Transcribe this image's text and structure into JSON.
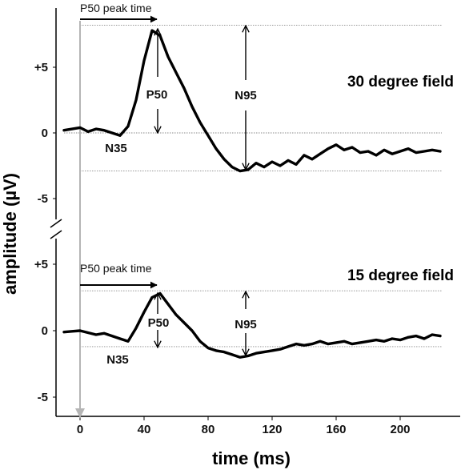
{
  "chart_data": {
    "type": "line",
    "xlabel": "time (ms)",
    "ylabel": "amplitude (µV)",
    "xlim": [
      -10,
      225
    ],
    "x_ticks": [
      "0",
      "40",
      "80",
      "120",
      "160",
      "200"
    ],
    "y_ticks": [
      "+5",
      "0",
      "-5"
    ],
    "panels": [
      {
        "label": "30 degree field",
        "ylim": [
          -6,
          9.5
        ],
        "annotations": {
          "peak_time": "P50 peak time",
          "P50": "P50",
          "N35": "N35",
          "N95": "N95"
        },
        "reference_lines": {
          "peak": 8.2,
          "baseline": 0,
          "trough": -2.9
        },
        "series": [
          {
            "x": [
              -10,
              -5,
              0,
              5,
              10,
              15,
              20,
              25,
              30,
              35,
              40,
              45,
              50,
              55,
              60,
              65,
              70,
              75,
              80,
              85,
              90,
              95,
              100,
              105,
              110,
              115,
              120,
              125,
              130,
              135,
              140,
              145,
              150,
              155,
              160,
              165,
              170,
              175,
              180,
              185,
              190,
              195,
              200,
              205,
              210,
              215,
              220,
              225
            ],
            "y": [
              0.2,
              0.3,
              0.4,
              0.1,
              0.3,
              0.2,
              0.0,
              -0.2,
              0.5,
              2.5,
              5.5,
              7.8,
              7.4,
              5.8,
              4.6,
              3.4,
              2.0,
              0.8,
              -0.2,
              -1.2,
              -2.0,
              -2.6,
              -2.9,
              -2.8,
              -2.3,
              -2.6,
              -2.2,
              -2.5,
              -2.1,
              -2.4,
              -1.7,
              -2.0,
              -1.6,
              -1.2,
              -0.9,
              -1.3,
              -1.1,
              -1.5,
              -1.4,
              -1.7,
              -1.3,
              -1.6,
              -1.4,
              -1.2,
              -1.5,
              -1.4,
              -1.3,
              -1.4
            ]
          }
        ]
      },
      {
        "label": "15 degree field",
        "ylim": [
          -6,
          6
        ],
        "annotations": {
          "peak_time": "P50 peak time",
          "P50": "P50",
          "N35": "N35",
          "N95": "N95"
        },
        "reference_lines": {
          "peak": 3.0,
          "trough": -1.2
        },
        "series": [
          {
            "x": [
              -10,
              -5,
              0,
              5,
              10,
              15,
              20,
              25,
              30,
              35,
              40,
              45,
              50,
              55,
              60,
              65,
              70,
              75,
              80,
              85,
              90,
              95,
              100,
              105,
              110,
              115,
              120,
              125,
              130,
              135,
              140,
              145,
              150,
              155,
              160,
              165,
              170,
              175,
              180,
              185,
              190,
              195,
              200,
              205,
              210,
              215,
              220,
              225
            ],
            "y": [
              -0.1,
              -0.05,
              0.0,
              -0.15,
              -0.3,
              -0.2,
              -0.4,
              -0.6,
              -0.8,
              0.2,
              1.4,
              2.5,
              2.8,
              2.0,
              1.2,
              0.6,
              0.0,
              -0.8,
              -1.3,
              -1.5,
              -1.6,
              -1.8,
              -2.0,
              -1.9,
              -1.7,
              -1.6,
              -1.5,
              -1.4,
              -1.2,
              -1.0,
              -1.1,
              -1.0,
              -0.8,
              -1.0,
              -0.9,
              -0.8,
              -1.0,
              -0.9,
              -0.8,
              -0.7,
              -0.8,
              -0.6,
              -0.7,
              -0.5,
              -0.4,
              -0.6,
              -0.3,
              -0.4
            ]
          }
        ]
      }
    ]
  },
  "colors": {
    "trace": "#000000",
    "axis": "#000000",
    "onset_line": "#b5b5b5",
    "reference_line": "#8a8a8a"
  }
}
